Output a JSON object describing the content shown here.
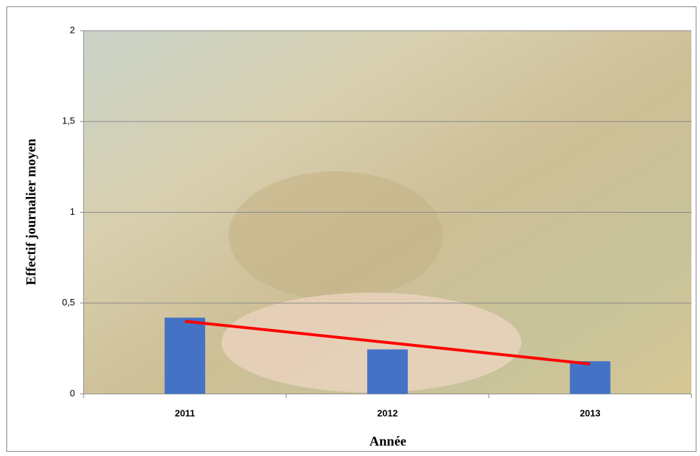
{
  "chart_data": {
    "type": "bar",
    "x_label": "Année",
    "y_label": "Effectif journalier moyen",
    "categories": [
      "2011",
      "2012",
      "2013"
    ],
    "values": [
      0.42,
      0.245,
      0.18
    ],
    "color": "#4472c4",
    "trend": {
      "color": "#ff0000",
      "values": [
        0.4,
        0.283,
        0.165
      ]
    },
    "ylim": [
      0,
      2
    ],
    "yticks": [
      0,
      {
        "value": 0.5,
        "label": "0,5"
      },
      1,
      {
        "value": 1.5,
        "label": "1,5"
      },
      2
    ],
    "grid": true
  }
}
